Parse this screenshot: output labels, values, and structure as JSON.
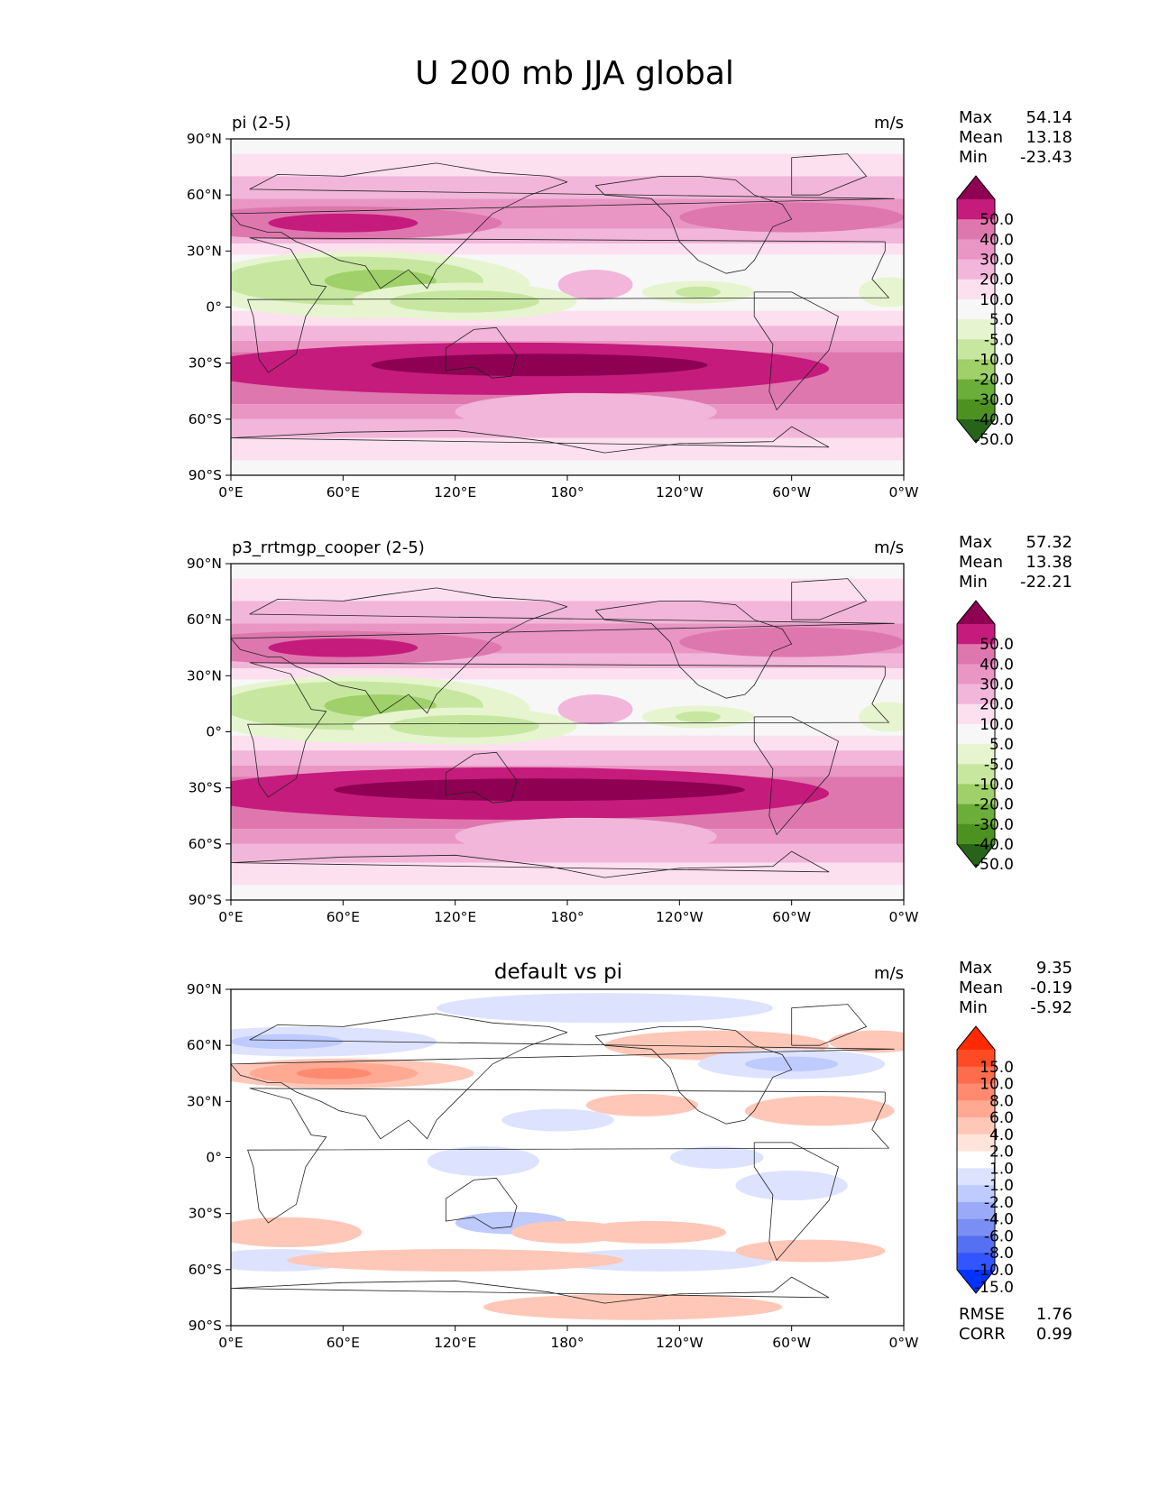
{
  "figure": {
    "title": "U 200 mb JJA global"
  },
  "chart_data": [
    {
      "type": "heatmap",
      "left_title": "pi (2-5)",
      "center_title": "",
      "units": "m/s",
      "xticks": [
        "0°E",
        "60°E",
        "120°E",
        "180°",
        "120°W",
        "60°W",
        "0°W"
      ],
      "yticks": [
        "90°N",
        "60°N",
        "30°N",
        "0°",
        "30°S",
        "60°S",
        "90°S"
      ],
      "xlim": [
        0,
        360
      ],
      "ylim": [
        -90,
        90
      ],
      "stats": [
        {
          "label": "Max",
          "value": "54.14"
        },
        {
          "label": "Mean",
          "value": "13.18"
        },
        {
          "label": "Min",
          "value": "-23.43"
        }
      ],
      "colorbar": {
        "labels": [
          "50.0",
          "40.0",
          "30.0",
          "20.0",
          "10.0",
          "5.0",
          "-5.0",
          "-10.0",
          "-20.0",
          "-30.0",
          "-40.0",
          "-50.0"
        ],
        "colors": [
          "#8e0152",
          "#c51b7d",
          "#de77ae",
          "#e996c4",
          "#f1b6da",
          "#fde0ef",
          "#f7f7f7",
          "#e6f5d0",
          "#c7e7a0",
          "#9fd069",
          "#6cae3a",
          "#4d9221",
          "#276419"
        ]
      }
    },
    {
      "type": "heatmap",
      "left_title": "p3_rrtmgp_cooper (2-5)",
      "center_title": "",
      "units": "m/s",
      "xticks": [
        "0°E",
        "60°E",
        "120°E",
        "180°",
        "120°W",
        "60°W",
        "0°W"
      ],
      "yticks": [
        "90°N",
        "60°N",
        "30°N",
        "0°",
        "30°S",
        "60°S",
        "90°S"
      ],
      "xlim": [
        0,
        360
      ],
      "ylim": [
        -90,
        90
      ],
      "stats": [
        {
          "label": "Max",
          "value": "57.32"
        },
        {
          "label": "Mean",
          "value": "13.38"
        },
        {
          "label": "Min",
          "value": "-22.21"
        }
      ],
      "colorbar": {
        "labels": [
          "50.0",
          "40.0",
          "30.0",
          "20.0",
          "10.0",
          "5.0",
          "-5.0",
          "-10.0",
          "-20.0",
          "-30.0",
          "-40.0",
          "-50.0"
        ],
        "colors": [
          "#8e0152",
          "#c51b7d",
          "#de77ae",
          "#e996c4",
          "#f1b6da",
          "#fde0ef",
          "#f7f7f7",
          "#e6f5d0",
          "#c7e7a0",
          "#9fd069",
          "#6cae3a",
          "#4d9221",
          "#276419"
        ]
      }
    },
    {
      "type": "heatmap",
      "left_title": "",
      "center_title": "default vs pi",
      "units": "m/s",
      "xticks": [
        "0°E",
        "60°E",
        "120°E",
        "180°",
        "120°W",
        "60°W",
        "0°W"
      ],
      "yticks": [
        "90°N",
        "60°N",
        "30°N",
        "0°",
        "30°S",
        "60°S",
        "90°S"
      ],
      "xlim": [
        0,
        360
      ],
      "ylim": [
        -90,
        90
      ],
      "stats": [
        {
          "label": "Max",
          "value": "9.35"
        },
        {
          "label": "Mean",
          "value": "-0.19"
        },
        {
          "label": "Min",
          "value": "-5.92"
        }
      ],
      "extra_stats": [
        {
          "label": "RMSE",
          "value": "1.76"
        },
        {
          "label": "CORR",
          "value": "0.99"
        }
      ],
      "colorbar": {
        "labels": [
          "15.0",
          "10.0",
          "8.0",
          "6.0",
          "4.0",
          "2.0",
          "1.0",
          "-1.0",
          "-2.0",
          "-4.0",
          "-6.0",
          "-8.0",
          "-10.0",
          "-15.0"
        ],
        "colors": [
          "#ff2a00",
          "#ff4a26",
          "#ff6b4d",
          "#ff8a70",
          "#ffa993",
          "#ffc7b7",
          "#ffe4db",
          "#ffffff",
          "#dde3ff",
          "#bfcaff",
          "#9aaaf8",
          "#7a8ef4",
          "#5570f2",
          "#3355ff",
          "#0033ff"
        ]
      }
    }
  ]
}
